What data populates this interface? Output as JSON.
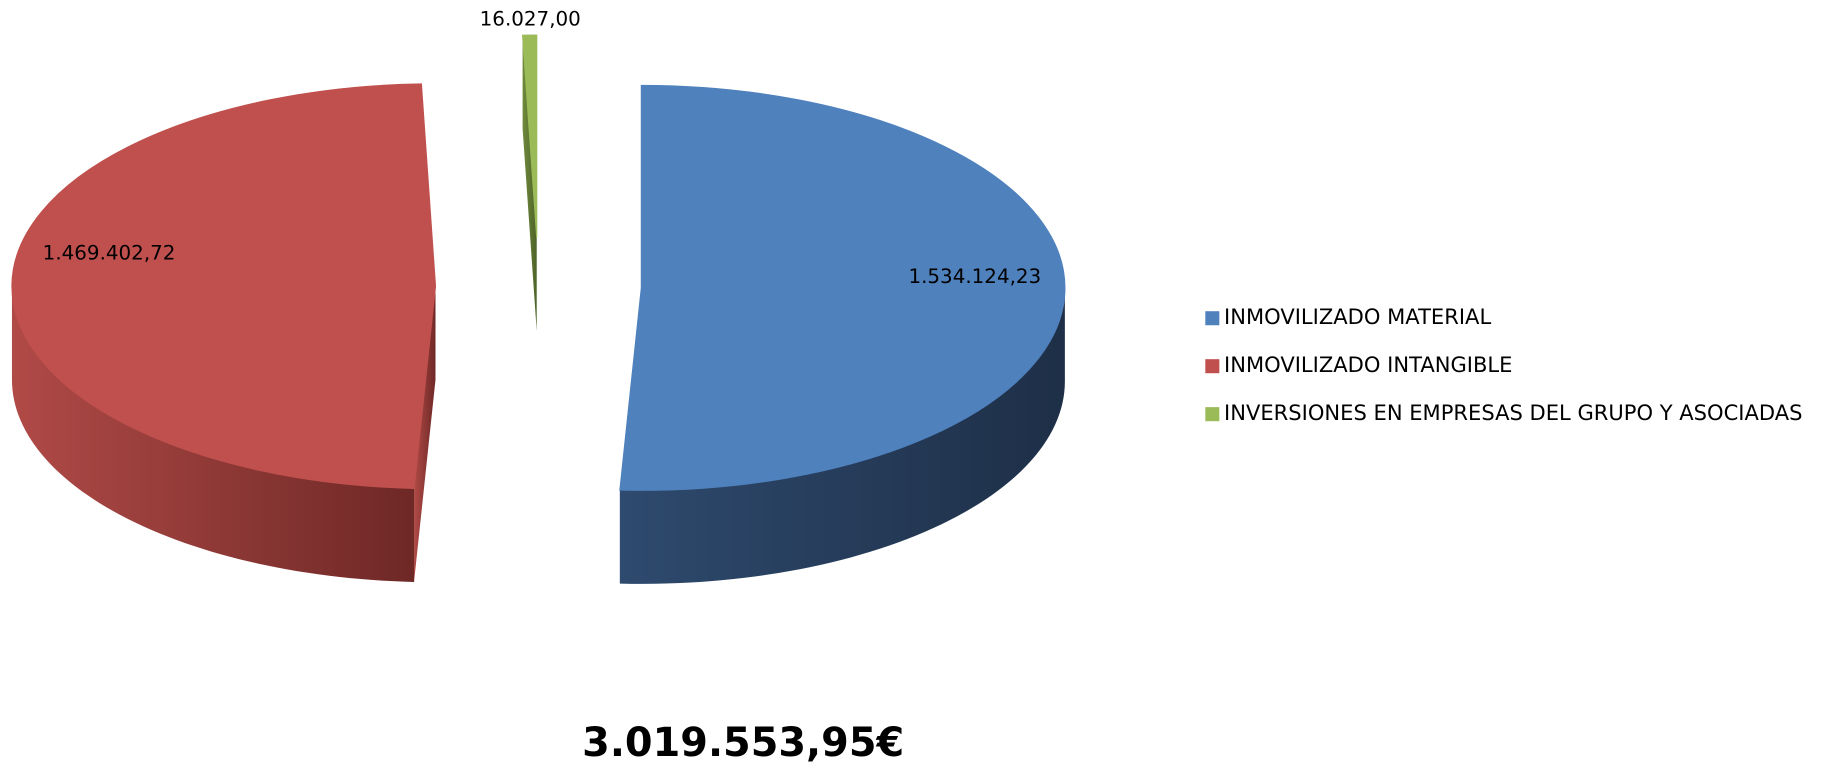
{
  "chart_data": {
    "type": "pie",
    "categories": [
      "INMOVILIZADO MATERIAL",
      "INMOVILIZADO INTANGIBLE",
      "INVERSIONES EN EMPRESAS DEL GRUPO Y ASOCIADAS"
    ],
    "values": [
      1534124.23,
      1469402.72,
      16027.0
    ],
    "value_labels": [
      "1.534.124,23",
      "1.469.402,72",
      "16.027,00"
    ],
    "colors": [
      "#4f81bd",
      "#c0504d",
      "#9bbb59"
    ],
    "legend": "right",
    "annotation": "3.019.553,95€"
  }
}
